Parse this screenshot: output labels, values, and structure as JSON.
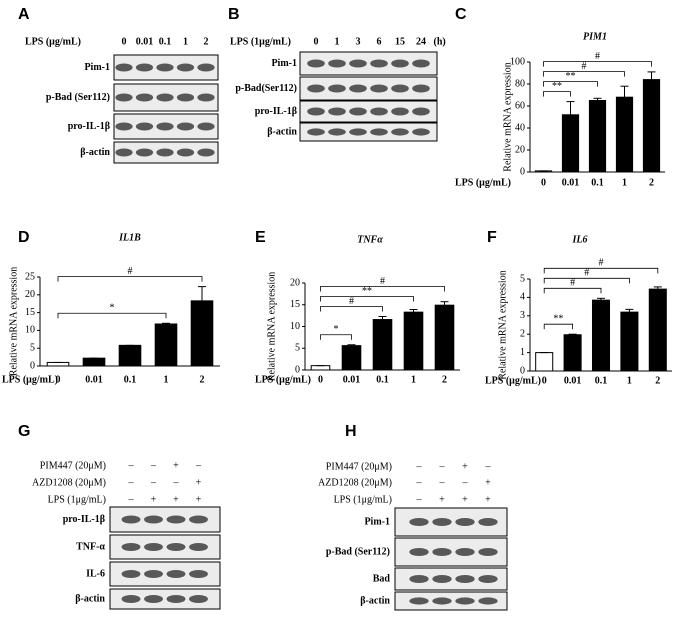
{
  "chart_data": [
    {
      "type": "bar",
      "panel": "C",
      "title": "PIM1",
      "y_label": "Relative mRNA expression",
      "x_label": "LPS (μg/mL)",
      "categories": [
        "0",
        "0.01",
        "0.1",
        "1",
        "2"
      ],
      "values": [
        1,
        52,
        65,
        68,
        84
      ],
      "errors": [
        0,
        12,
        2,
        10,
        7
      ],
      "colors": [
        "#ffffff",
        "#000000",
        "#000000",
        "#000000",
        "#000000"
      ],
      "ylim": [
        0,
        100
      ],
      "yticks": [
        0,
        20,
        40,
        60,
        80,
        100
      ],
      "annotations": [
        {
          "label": "**",
          "target": "0.01"
        },
        {
          "label": "**",
          "target": "0.1"
        },
        {
          "label": "#",
          "target": "1"
        },
        {
          "label": "#",
          "target": "2"
        }
      ]
    },
    {
      "type": "bar",
      "panel": "D",
      "title": "IL1B",
      "y_label": "Relative mRNA expression",
      "x_label": "LPS (μg/mL)",
      "categories": [
        "0",
        "0.01",
        "0.1",
        "1",
        "2"
      ],
      "values": [
        1,
        2.2,
        5.8,
        11.8,
        18.3
      ],
      "errors": [
        0,
        0,
        0,
        0.2,
        4
      ],
      "colors": [
        "#ffffff",
        "#000000",
        "#000000",
        "#000000",
        "#000000"
      ],
      "ylim": [
        0,
        25
      ],
      "yticks": [
        0,
        5,
        10,
        15,
        20,
        25
      ],
      "annotations": [
        {
          "label": "*",
          "target": "1"
        },
        {
          "label": "#",
          "target": "2"
        }
      ]
    },
    {
      "type": "bar",
      "panel": "E",
      "title": "TNFα",
      "y_label": "Relative mRNA expression",
      "x_label": "LPS (μg/mL)",
      "categories": [
        "0",
        "0.01",
        "0.1",
        "1",
        "2"
      ],
      "values": [
        1,
        5.6,
        11.6,
        13.3,
        14.9
      ],
      "errors": [
        0,
        0.2,
        0.7,
        0.6,
        0.8
      ],
      "colors": [
        "#ffffff",
        "#000000",
        "#000000",
        "#000000",
        "#000000"
      ],
      "ylim": [
        0,
        20
      ],
      "yticks": [
        0,
        5,
        10,
        15,
        20
      ],
      "annotations": [
        {
          "label": "*",
          "target": "0.01"
        },
        {
          "label": "#",
          "target": "0.1"
        },
        {
          "label": "**",
          "target": "1"
        },
        {
          "label": "#",
          "target": "2"
        }
      ]
    },
    {
      "type": "bar",
      "panel": "F",
      "title": "IL6",
      "y_label": "Relative mRNA expression",
      "x_label": "LPS (μg/mL)",
      "categories": [
        "0",
        "0.01",
        "0.1",
        "1",
        "2"
      ],
      "values": [
        1,
        1.97,
        3.85,
        3.2,
        4.45
      ],
      "errors": [
        0,
        0.03,
        0.1,
        0.15,
        0.12
      ],
      "colors": [
        "#ffffff",
        "#000000",
        "#000000",
        "#000000",
        "#000000"
      ],
      "ylim": [
        0,
        5
      ],
      "yticks": [
        0,
        1,
        2,
        3,
        4,
        5
      ],
      "annotations": [
        {
          "label": "**",
          "target": "0.01"
        },
        {
          "label": "#",
          "target": "0.1"
        },
        {
          "label": "#",
          "target": "1"
        },
        {
          "label": "#",
          "target": "2"
        }
      ]
    }
  ],
  "blots": [
    {
      "panel": "A",
      "header": "LPS (μg/mL)",
      "lanes": [
        "0",
        "0.01",
        "0.1",
        "1",
        "2"
      ],
      "rows": [
        "Pim-1",
        "p-Bad (Ser112)",
        "pro-IL-1β",
        "β-actin"
      ]
    },
    {
      "panel": "B",
      "header": "LPS (1μg/mL)",
      "lanes": [
        "0",
        "1",
        "3",
        "6",
        "15",
        "24"
      ],
      "unit": "(h)",
      "rows": [
        "Pim-1",
        "p-Bad(Ser112)",
        "pro-IL-1β",
        "β-actin"
      ]
    },
    {
      "panel": "G",
      "conditions": [
        {
          "name": "PIM447 (20μM)",
          "signs": [
            "–",
            "–",
            "+",
            "–"
          ]
        },
        {
          "name": "AZD1208 (20μM)",
          "signs": [
            "–",
            "–",
            "–",
            "+"
          ]
        },
        {
          "name": "LPS (1μg/mL)",
          "signs": [
            "–",
            "+",
            "+",
            "+"
          ]
        }
      ],
      "rows": [
        "pro-IL-1β",
        "TNF-α",
        "IL-6",
        "β-actin"
      ]
    },
    {
      "panel": "H",
      "conditions": [
        {
          "name": "PIM447 (20μM)",
          "signs": [
            "–",
            "–",
            "+",
            "–"
          ]
        },
        {
          "name": "AZD1208 (20μM)",
          "signs": [
            "–",
            "–",
            "–",
            "+"
          ]
        },
        {
          "name": "LPS (1μg/mL)",
          "signs": [
            "–",
            "+",
            "+",
            "+"
          ]
        }
      ],
      "rows": [
        "Pim-1",
        "p-Bad (Ser112)",
        "Bad",
        "β-actin"
      ]
    }
  ]
}
